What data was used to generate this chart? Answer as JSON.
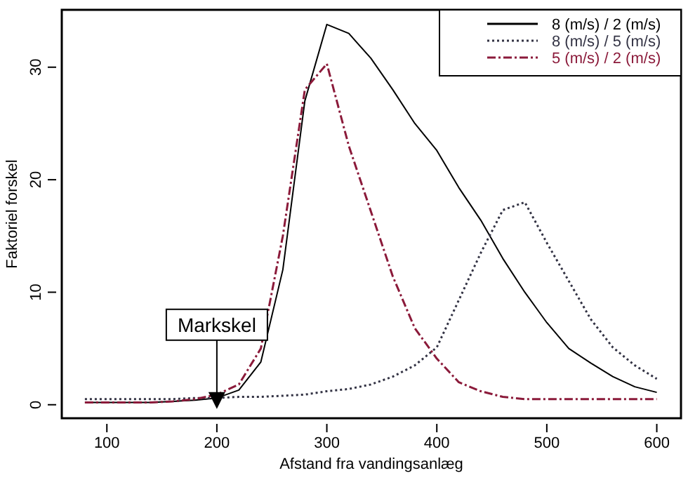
{
  "chart_data": {
    "type": "line",
    "xlabel": "Afstand fra vandingsanlæg",
    "ylabel": "Faktoriel forskel",
    "x": [
      80,
      100,
      120,
      140,
      160,
      180,
      200,
      220,
      240,
      260,
      280,
      300,
      320,
      340,
      360,
      380,
      400,
      420,
      440,
      460,
      480,
      500,
      520,
      540,
      560,
      580,
      600
    ],
    "xlim": [
      59,
      622
    ],
    "xticks": [
      100,
      200,
      300,
      400,
      500,
      600
    ],
    "ylim": [
      -1.2,
      35.1
    ],
    "yticks": [
      0,
      10,
      20,
      30
    ],
    "grid": false,
    "legend": "top right",
    "marker": "none",
    "series": [
      {
        "name": "8 (m/s) / 2 (m/s)",
        "color": "#000000",
        "line_style": "solid",
        "values": [
          0.2,
          0.2,
          0.2,
          0.2,
          0.3,
          0.4,
          0.6,
          1.3,
          3.8,
          12,
          27,
          33.8,
          33,
          30.8,
          28,
          25,
          22.6,
          19.3,
          16.4,
          13,
          10,
          7.3,
          5,
          3.7,
          2.5,
          1.6,
          1.1
        ]
      },
      {
        "name": "8 (m/s) / 5 (m/s)",
        "color": "#333344",
        "line_style": "dotted",
        "values": [
          0.5,
          0.5,
          0.5,
          0.5,
          0.5,
          0.6,
          0.6,
          0.7,
          0.7,
          0.8,
          0.9,
          1.2,
          1.4,
          1.8,
          2.5,
          3.5,
          5.1,
          9.3,
          13.5,
          17.3,
          18,
          14.4,
          11,
          7.6,
          5.1,
          3.5,
          2.3
        ]
      },
      {
        "name": "5 (m/s) / 2 (m/s)",
        "color": "#8b1a3a",
        "line_style": "dashed",
        "values": [
          0.2,
          0.2,
          0.2,
          0.2,
          0.3,
          0.5,
          0.9,
          1.8,
          5,
          15,
          28,
          30.3,
          23,
          17.2,
          11.4,
          6.8,
          4.1,
          2,
          1.2,
          0.7,
          0.5,
          0.5,
          0.5,
          0.5,
          0.5,
          0.5,
          0.5
        ]
      }
    ],
    "annotations": [
      {
        "text": "Markskel",
        "x": 200,
        "y": 0
      }
    ]
  }
}
